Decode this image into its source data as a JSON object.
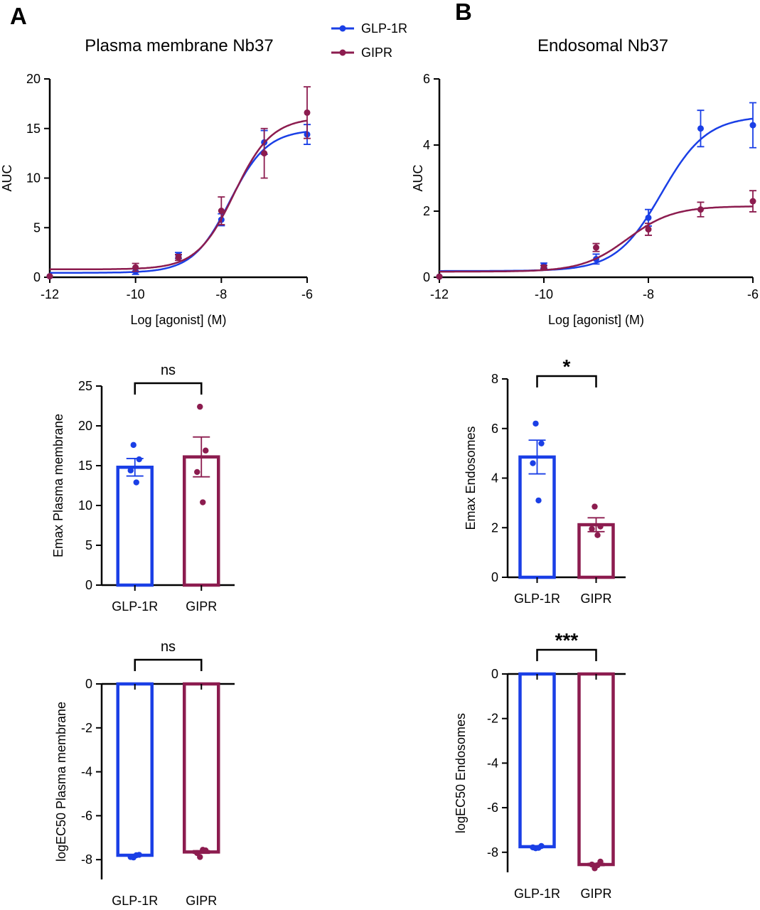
{
  "panels": {
    "A": "A",
    "B": "B"
  },
  "legend": [
    {
      "name": "GLP-1R",
      "color": "#1a3fe6"
    },
    {
      "name": "GIPR",
      "color": "#8c1c4f"
    }
  ],
  "chart_data": [
    {
      "id": "A1",
      "type": "line",
      "title": "Plasma membrane Nb37",
      "xlabel": "Log [agonist] (M)",
      "ylabel": "AUC",
      "xlim": [
        -12,
        -6
      ],
      "ylim": [
        0,
        20
      ],
      "xticks": [
        -12,
        -10,
        -8,
        -6
      ],
      "xtick_labels": [
        "-12",
        "-10",
        "-8",
        "-6"
      ],
      "yticks": [
        0,
        5,
        10,
        15,
        20
      ],
      "ytick_labels": [
        "0",
        "5",
        "10",
        "15",
        "20"
      ],
      "series": [
        {
          "name": "GLP-1R",
          "color": "#1a3fe6",
          "x": [
            -12,
            -10,
            -9,
            -8,
            -7,
            -6
          ],
          "y": [
            0.1,
            0.6,
            2.2,
            5.8,
            13.6,
            14.4
          ],
          "err": [
            0,
            0.3,
            0.3,
            0.6,
            1.2,
            1.0
          ],
          "fit": {
            "bottom": 0.45,
            "top": 14.9,
            "logec50": -7.8,
            "hill": 1.0
          }
        },
        {
          "name": "GIPR",
          "color": "#8c1c4f",
          "x": [
            -12,
            -10,
            -9,
            -8,
            -7,
            -6
          ],
          "y": [
            0.1,
            1.0,
            2.0,
            6.7,
            12.5,
            16.6
          ],
          "err": [
            0,
            0.4,
            0.3,
            1.4,
            2.5,
            2.6
          ],
          "fit": {
            "bottom": 0.8,
            "top": 16.1,
            "logec50": -7.7,
            "hill": 1.0
          }
        }
      ]
    },
    {
      "id": "B1",
      "type": "line",
      "title": "Endosomal Nb37",
      "xlabel": "Log [agonist] (M)",
      "ylabel": "AUC",
      "xlim": [
        -12,
        -6
      ],
      "ylim": [
        0,
        6
      ],
      "xticks": [
        -12,
        -10,
        -8,
        -6
      ],
      "xtick_labels": [
        "-12",
        "-10",
        "-8",
        "-6"
      ],
      "yticks": [
        0,
        2,
        4,
        6
      ],
      "ytick_labels": [
        "0",
        "2",
        "4",
        "6"
      ],
      "series": [
        {
          "name": "GLP-1R",
          "color": "#1a3fe6",
          "x": [
            -12,
            -10,
            -9,
            -8,
            -7,
            -6
          ],
          "y": [
            0.02,
            0.35,
            0.55,
            1.8,
            4.5,
            4.6
          ],
          "err": [
            0,
            0.08,
            0.15,
            0.25,
            0.55,
            0.68
          ],
          "fit": {
            "bottom": 0.19,
            "top": 4.88,
            "logec50": -7.75,
            "hill": 1.0
          }
        },
        {
          "name": "GIPR",
          "color": "#8c1c4f",
          "x": [
            -12,
            -10,
            -9,
            -8,
            -7,
            -6
          ],
          "y": [
            0.02,
            0.3,
            0.9,
            1.45,
            2.05,
            2.3
          ],
          "err": [
            0,
            0.06,
            0.12,
            0.18,
            0.22,
            0.32
          ],
          "fit": {
            "bottom": 0.17,
            "top": 2.15,
            "logec50": -8.4,
            "hill": 1.0
          }
        }
      ]
    },
    {
      "id": "A2",
      "type": "bar",
      "title": "",
      "ylabel": "Emax Plasma membrane",
      "categories": [
        "GLP-1R",
        "GIPR"
      ],
      "colors": [
        "#1a3fe6",
        "#8c1c4f"
      ],
      "values": [
        14.8,
        16.1
      ],
      "sem": [
        1.1,
        2.5
      ],
      "points": [
        [
          17.6,
          15.8,
          14.4,
          12.9
        ],
        [
          22.4,
          16.9,
          14.2,
          10.4
        ]
      ],
      "ylim": [
        0,
        25
      ],
      "yticks": [
        0,
        5,
        10,
        15,
        20,
        25
      ],
      "ytick_labels": [
        "0",
        "5",
        "10",
        "15",
        "20",
        "25"
      ],
      "significance": "ns"
    },
    {
      "id": "B2",
      "type": "bar",
      "title": "",
      "ylabel": "Emax Endosomes",
      "categories": [
        "GLP-1R",
        "GIPR"
      ],
      "colors": [
        "#1a3fe6",
        "#8c1c4f"
      ],
      "values": [
        4.85,
        2.12
      ],
      "sem": [
        0.68,
        0.28
      ],
      "points": [
        [
          6.2,
          5.4,
          4.6,
          3.1
        ],
        [
          2.85,
          2.05,
          1.95,
          1.7
        ]
      ],
      "ylim": [
        0,
        8
      ],
      "yticks": [
        0,
        2,
        4,
        6,
        8
      ],
      "ytick_labels": [
        "0",
        "2",
        "4",
        "6",
        "8"
      ],
      "significance": "*"
    },
    {
      "id": "A3",
      "type": "bar",
      "title": "",
      "ylabel": "logEC50 Plasma membrane",
      "categories": [
        "GLP-1R",
        "GIPR"
      ],
      "colors": [
        "#1a3fe6",
        "#8c1c4f"
      ],
      "values": [
        -7.8,
        -7.65
      ],
      "sem": [
        0.03,
        0.06
      ],
      "points": [
        [
          -7.9,
          -7.78,
          -7.88,
          -7.8
        ],
        [
          -7.88,
          -7.58,
          -7.7,
          -7.55
        ]
      ],
      "ylim": [
        -8.9,
        0
      ],
      "yticks": [
        0,
        -2,
        -4,
        -6,
        -8
      ],
      "ytick_labels": [
        "0",
        "-2",
        "-4",
        "-6",
        "-8"
      ],
      "significance": "ns"
    },
    {
      "id": "B3",
      "type": "bar",
      "title": "",
      "ylabel": "logEC50 Endosomes",
      "categories": [
        "GLP-1R",
        "GIPR"
      ],
      "colors": [
        "#1a3fe6",
        "#8c1c4f"
      ],
      "values": [
        -7.75,
        -8.55
      ],
      "sem": [
        0.03,
        0.05
      ],
      "points": [
        [
          -7.82,
          -7.72,
          -7.78,
          -7.8
        ],
        [
          -8.72,
          -8.42,
          -8.55,
          -8.58
        ]
      ],
      "ylim": [
        -8.9,
        0
      ],
      "yticks": [
        0,
        -2,
        -4,
        -6,
        -8
      ],
      "ytick_labels": [
        "0",
        "-2",
        "-4",
        "-6",
        "-8"
      ],
      "significance": "***"
    }
  ]
}
